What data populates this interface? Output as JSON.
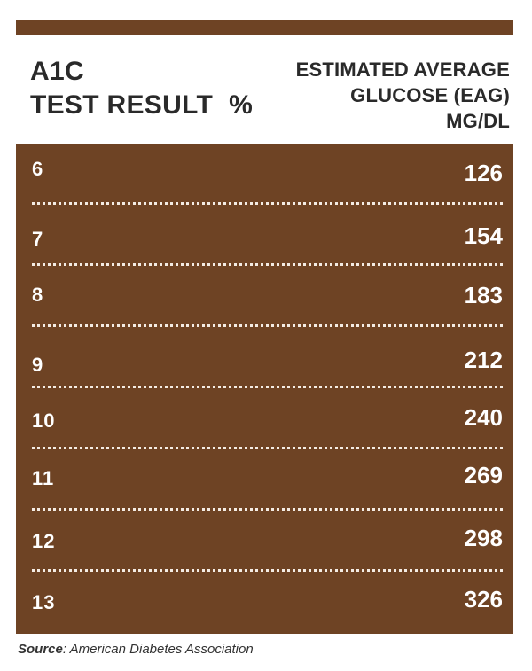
{
  "header": {
    "left_line1": "A1C",
    "left_line2": "TEST RESULT",
    "left_unit": "%",
    "right_line1": "ESTIMATED AVERAGE",
    "right_line2": "GLUCOSE (EAG)",
    "right_line3": "MG/DL"
  },
  "rows": [
    {
      "a1c": "6",
      "eag": "126"
    },
    {
      "a1c": "7",
      "eag": "154"
    },
    {
      "a1c": "8",
      "eag": "183"
    },
    {
      "a1c": "9",
      "eag": "212"
    },
    {
      "a1c": "10",
      "eag": "240"
    },
    {
      "a1c": "11",
      "eag": "269"
    },
    {
      "a1c": "12",
      "eag": "298"
    },
    {
      "a1c": "13",
      "eag": "326"
    }
  ],
  "source": {
    "label": "Source",
    "separator": ":",
    "text": " American Diabetes Association"
  },
  "colors": {
    "brown": "#6e4324",
    "text_dark": "#2a2a2a",
    "text_light": "#ffffff"
  }
}
